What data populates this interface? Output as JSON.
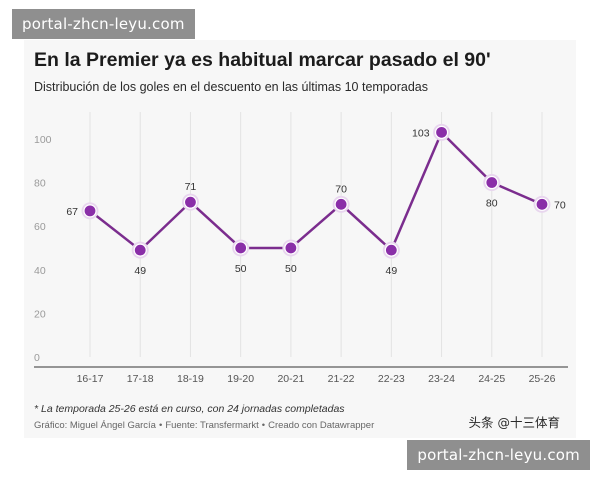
{
  "watermark": {
    "text": "portal-zhcn-leyu.com"
  },
  "brand": {
    "text": "头条 @十三体育"
  },
  "colors": {
    "line": "#7b2d8e",
    "point": "#8a2ea8",
    "grid": "#e3e3e3",
    "background": "#f7f7f7"
  },
  "chart_data": {
    "type": "line",
    "title": "En la Premier ya es habitual marcar pasado el 90'",
    "subtitle": "Distribución de los goles en el descuento en las últimas 10 temporadas",
    "categories": [
      "16-17",
      "17-18",
      "18-19",
      "19-20",
      "20-21",
      "21-22",
      "22-23",
      "23-24",
      "24-25",
      "25-26"
    ],
    "values": [
      67,
      49,
      71,
      50,
      50,
      70,
      49,
      103,
      80,
      70
    ],
    "data_labels": [
      "67",
      "49",
      "71",
      "50",
      "50",
      "70",
      "49",
      "103",
      "80",
      "70"
    ],
    "label_positions": [
      "left",
      "below",
      "above",
      "below",
      "below",
      "above",
      "below",
      "left",
      "below",
      "right"
    ],
    "yticks": [
      0,
      20,
      40,
      60,
      80,
      100
    ],
    "ytick_labels": [
      "0",
      "20",
      "40",
      "60",
      "80",
      "100"
    ],
    "ylim": [
      0,
      105
    ],
    "xlabel": "",
    "ylabel": "",
    "grid": "vertical",
    "footnote": "* La temporada 25-26 está en curso, con 24 jornadas completadas",
    "credits": {
      "graphic": "Gráfico: Miguel Ángel García",
      "source": "Fuente: Transfermarkt",
      "tool": "Creado con Datawrapper",
      "separator": "•"
    }
  }
}
